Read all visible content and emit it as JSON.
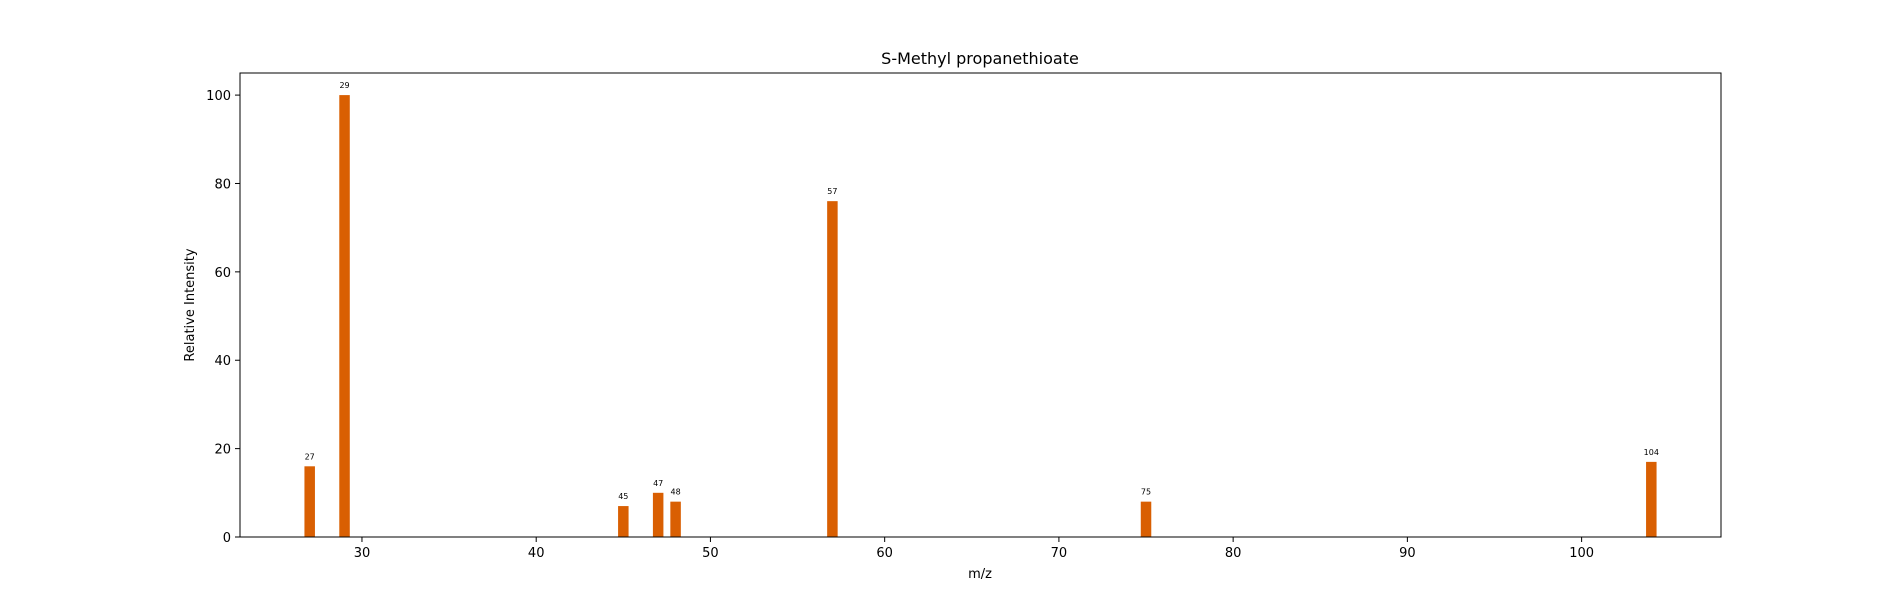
{
  "chart_data": {
    "type": "bar",
    "title": "S-Methyl propanethioate",
    "xlabel": "m/z",
    "ylabel": "Relative Intensity",
    "xlim": [
      23,
      108
    ],
    "ylim": [
      0,
      105
    ],
    "xticks": [
      30,
      40,
      50,
      60,
      70,
      80,
      90,
      100
    ],
    "yticks": [
      0,
      20,
      40,
      60,
      80,
      100
    ],
    "grid": false,
    "bar_color": "#d95f02",
    "x": [
      27,
      29,
      45,
      47,
      48,
      57,
      75,
      104
    ],
    "values": [
      16,
      100,
      7,
      10,
      8,
      76,
      8,
      17
    ],
    "data_labels": [
      "27",
      "29",
      "45",
      "47",
      "48",
      "57",
      "75",
      "104"
    ]
  }
}
